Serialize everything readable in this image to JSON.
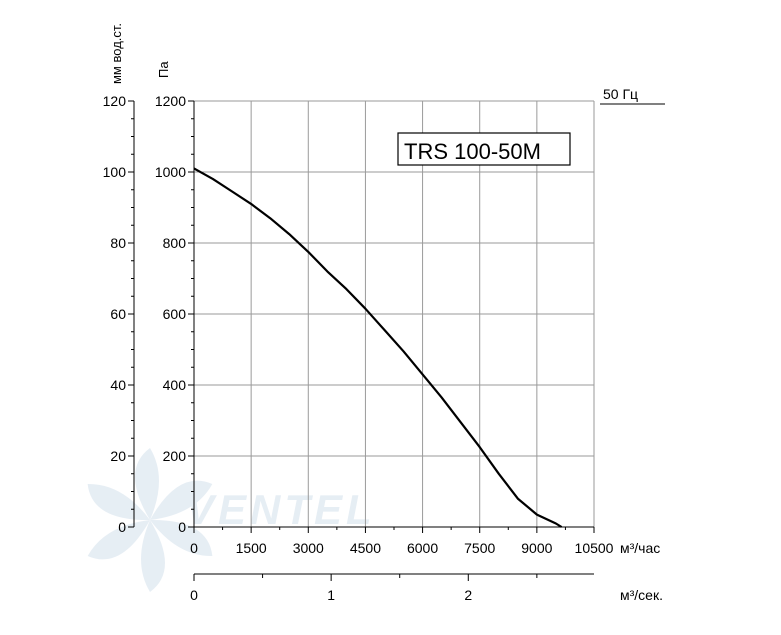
{
  "chart_data": {
    "type": "line",
    "model_label": "TRS 100-50M",
    "frequency_label": "50 Гц",
    "x_unit_flow_hour": "м³/час",
    "x_unit_flow_sec": "м³/сек.",
    "y_unit_pa": "Па",
    "y_unit_mm": "мм вод.ст.",
    "x_ticks": [
      "0",
      "1500",
      "3000",
      "4500",
      "6000",
      "7500",
      "9000",
      "10500"
    ],
    "x_tick_values": [
      0,
      1500,
      3000,
      4500,
      6000,
      7500,
      9000,
      10500
    ],
    "x_sec_ticks": [
      "0",
      "1",
      "2"
    ],
    "x_sec_tick_values": [
      0,
      1,
      2
    ],
    "y_pa_ticks": [
      "0",
      "200",
      "400",
      "600",
      "800",
      "1000",
      "1200"
    ],
    "y_pa_tick_values": [
      0,
      200,
      400,
      600,
      800,
      1000,
      1200
    ],
    "y_mm_ticks": [
      "0",
      "20",
      "40",
      "60",
      "80",
      "100",
      "120"
    ],
    "y_mm_tick_values": [
      0,
      20,
      40,
      60,
      80,
      100,
      120
    ],
    "xlim": [
      0,
      10500
    ],
    "ylim": [
      0,
      1200
    ],
    "grid": true,
    "series": [
      {
        "x": [
          0,
          500,
          1000,
          1500,
          2000,
          2500,
          3000,
          3500,
          4000,
          4500,
          5000,
          5500,
          6000,
          6500,
          7000,
          7500,
          8000,
          8500,
          9000,
          9500,
          9650
        ],
        "y": [
          1010,
          980,
          945,
          910,
          870,
          825,
          775,
          720,
          670,
          615,
          555,
          495,
          430,
          365,
          295,
          225,
          150,
          80,
          35,
          10,
          0
        ],
        "color": "#000000"
      }
    ]
  },
  "watermark": "VENTEL"
}
